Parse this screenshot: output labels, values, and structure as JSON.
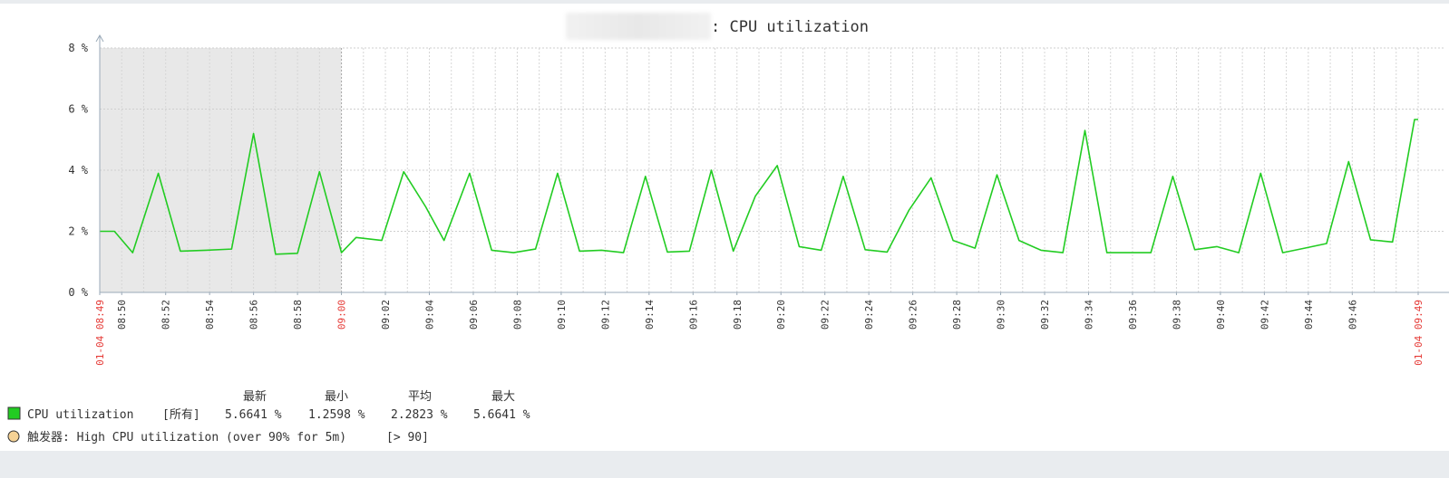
{
  "chart_data": {
    "type": "line",
    "title": ": CPU utilization",
    "y_unit": "%",
    "ylim": [
      0,
      8
    ],
    "y_ticks": [
      0,
      2,
      4,
      6,
      8
    ],
    "x_range": [
      "08:49",
      "09:49"
    ],
    "x_ticks": [
      "08:50",
      "08:52",
      "08:54",
      "08:56",
      "08:58",
      "09:02",
      "09:04",
      "09:06",
      "09:08",
      "09:10",
      "09:12",
      "09:14",
      "09:16",
      "09:18",
      "09:20",
      "09:22",
      "09:24",
      "09:26",
      "09:28",
      "09:30",
      "09:32",
      "09:34",
      "09:36",
      "09:38",
      "09:40",
      "09:42",
      "09:44",
      "09:46"
    ],
    "x_special_ticks": [
      {
        "time": "08:49",
        "label": "01-04 08:49"
      },
      {
        "time": "09:00",
        "label": "09:00"
      },
      {
        "time": "09:49",
        "label": "01-04 09:49"
      }
    ],
    "grid": true,
    "shaded_range": [
      "08:49",
      "09:00"
    ],
    "series": [
      {
        "name": "CPU utilization",
        "color": "#22cc22",
        "points": [
          [
            "08:49:00",
            2.0
          ],
          [
            "08:49:40",
            2.0
          ],
          [
            "08:50:30",
            1.3
          ],
          [
            "08:51:40",
            3.9
          ],
          [
            "08:52:40",
            1.35
          ],
          [
            "08:53:50",
            1.38
          ],
          [
            "08:55:00",
            1.42
          ],
          [
            "08:56:00",
            5.2
          ],
          [
            "08:57:00",
            1.25
          ],
          [
            "08:58:00",
            1.28
          ],
          [
            "08:59:00",
            3.95
          ],
          [
            "09:00:00",
            1.3
          ],
          [
            "09:00:40",
            1.8
          ],
          [
            "09:01:50",
            1.7
          ],
          [
            "09:02:50",
            3.95
          ],
          [
            "09:03:50",
            2.8
          ],
          [
            "09:04:40",
            1.7
          ],
          [
            "09:05:50",
            3.9
          ],
          [
            "09:06:50",
            1.38
          ],
          [
            "09:07:50",
            1.3
          ],
          [
            "09:08:50",
            1.42
          ],
          [
            "09:09:50",
            3.9
          ],
          [
            "09:10:50",
            1.35
          ],
          [
            "09:11:50",
            1.38
          ],
          [
            "09:12:50",
            1.3
          ],
          [
            "09:13:50",
            3.8
          ],
          [
            "09:14:50",
            1.32
          ],
          [
            "09:15:50",
            1.35
          ],
          [
            "09:16:50",
            4.0
          ],
          [
            "09:17:50",
            1.35
          ],
          [
            "09:18:50",
            3.15
          ],
          [
            "09:19:50",
            4.15
          ],
          [
            "09:20:50",
            1.5
          ],
          [
            "09:21:50",
            1.38
          ],
          [
            "09:22:50",
            3.8
          ],
          [
            "09:23:50",
            1.4
          ],
          [
            "09:24:50",
            1.32
          ],
          [
            "09:25:50",
            2.7
          ],
          [
            "09:26:50",
            3.75
          ],
          [
            "09:27:50",
            1.7
          ],
          [
            "09:28:50",
            1.45
          ],
          [
            "09:29:50",
            3.85
          ],
          [
            "09:30:50",
            1.7
          ],
          [
            "09:31:50",
            1.38
          ],
          [
            "09:32:50",
            1.3
          ],
          [
            "09:33:50",
            5.3
          ],
          [
            "09:34:50",
            1.3
          ],
          [
            "09:35:50",
            1.3
          ],
          [
            "09:36:50",
            1.3
          ],
          [
            "09:37:50",
            3.8
          ],
          [
            "09:38:50",
            1.4
          ],
          [
            "09:39:50",
            1.5
          ],
          [
            "09:40:50",
            1.3
          ],
          [
            "09:41:50",
            3.9
          ],
          [
            "09:42:50",
            1.3
          ],
          [
            "09:43:50",
            1.45
          ],
          [
            "09:44:50",
            1.6
          ],
          [
            "09:45:50",
            4.28
          ],
          [
            "09:46:50",
            1.72
          ],
          [
            "09:47:50",
            1.65
          ],
          [
            "09:48:50",
            5.66
          ],
          [
            "09:49:00",
            5.66
          ]
        ]
      }
    ],
    "legend": {
      "headers": [
        "最新",
        "最小",
        "平均",
        "最大"
      ],
      "rows": [
        {
          "swatch_color": "#22cc22",
          "name": "CPU utilization",
          "scope": "[所有]",
          "latest": "5.6641 %",
          "min": "1.2598 %",
          "avg": "2.2823 %",
          "max": "5.6641 %"
        }
      ],
      "trigger": {
        "swatch_color": "#f5d295",
        "label": "触发器: High CPU utilization (over 90% for 5m)",
        "condition": "[> 90]"
      }
    }
  }
}
